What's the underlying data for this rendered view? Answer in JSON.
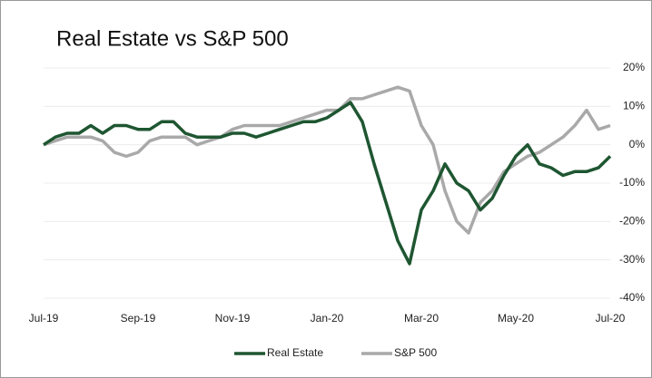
{
  "chart_data": {
    "type": "line",
    "title": "Real Estate vs S&P 500",
    "categories": [
      "Jul-19",
      null,
      null,
      null,
      null,
      null,
      null,
      null,
      "Sep-19",
      null,
      null,
      null,
      null,
      null,
      null,
      null,
      "Nov-19",
      null,
      null,
      null,
      null,
      null,
      null,
      null,
      "Jan-20",
      null,
      null,
      null,
      null,
      null,
      null,
      null,
      "Mar-20",
      null,
      null,
      null,
      null,
      null,
      null,
      null,
      "May-20",
      null,
      null,
      null,
      null,
      null,
      null,
      null,
      "Jul-20"
    ],
    "series": [
      {
        "name": "Real Estate",
        "color": "#1e5631",
        "values": [
          0,
          2,
          3,
          3,
          5,
          3,
          5,
          5,
          4,
          4,
          6,
          6,
          3,
          2,
          2,
          2,
          3,
          3,
          2,
          3,
          4,
          5,
          6,
          6,
          7,
          9,
          11,
          6,
          -5,
          -15,
          -25,
          -31,
          -17,
          -12,
          -5,
          -10,
          -12,
          -17,
          -14,
          -8,
          -3,
          0,
          -5,
          -6,
          -8,
          -7,
          -7,
          -6,
          -3
        ]
      },
      {
        "name": "S&P 500",
        "color": "#a9a9a9",
        "values": [
          0,
          1,
          2,
          2,
          2,
          1,
          -2,
          -3,
          -2,
          1,
          2,
          2,
          2,
          0,
          1,
          2,
          4,
          5,
          5,
          5,
          5,
          6,
          7,
          8,
          9,
          9,
          12,
          12,
          13,
          14,
          15,
          14,
          5,
          0,
          -12,
          -20,
          -23,
          -15,
          -12,
          -7,
          -5,
          -3,
          -2,
          0,
          2,
          5,
          9,
          4,
          5
        ]
      }
    ],
    "ylim": [
      -40,
      20
    ],
    "yticks": [
      {
        "value": 20,
        "label": "20%"
      },
      {
        "value": 10,
        "label": "10%"
      },
      {
        "value": 0,
        "label": "0%"
      },
      {
        "value": -10,
        "label": "-10%"
      },
      {
        "value": -20,
        "label": "-20%"
      },
      {
        "value": -30,
        "label": "-30%"
      },
      {
        "value": -40,
        "label": "-40%"
      }
    ],
    "grid": true,
    "legend": "bottom"
  }
}
